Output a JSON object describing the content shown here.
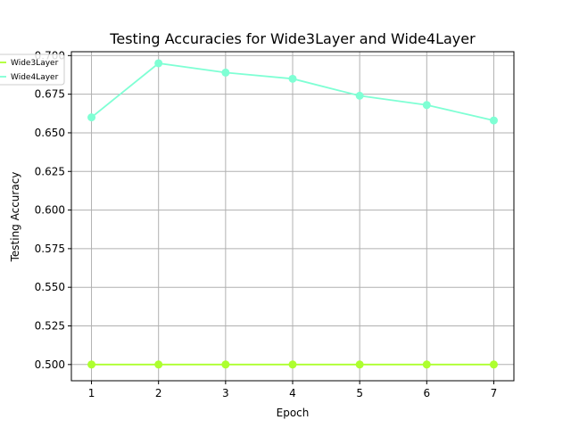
{
  "chart_data": {
    "type": "line",
    "title": "Testing Accuracies for Wide3Layer and Wide4Layer",
    "xlabel": "Epoch",
    "ylabel": "Testing Accuracy",
    "x": [
      1,
      2,
      3,
      4,
      5,
      6,
      7
    ],
    "xticks": [
      "1",
      "2",
      "3",
      "4",
      "5",
      "6",
      "7"
    ],
    "xlim": [
      0.7,
      7.3
    ],
    "yticks": [
      "0.500",
      "0.525",
      "0.550",
      "0.575",
      "0.600",
      "0.625",
      "0.650",
      "0.675",
      "0.700"
    ],
    "ylim": [
      0.4895,
      0.7025
    ],
    "grid": true,
    "legend_position": "top-left",
    "series": [
      {
        "name": "Wide3Layer",
        "color": "#adff2f",
        "values": [
          0.5,
          0.5,
          0.5,
          0.5,
          0.5,
          0.5,
          0.5
        ]
      },
      {
        "name": "Wide4Layer",
        "color": "#7fffd4",
        "values": [
          0.66,
          0.695,
          0.689,
          0.685,
          0.674,
          0.668,
          0.658
        ]
      }
    ]
  }
}
